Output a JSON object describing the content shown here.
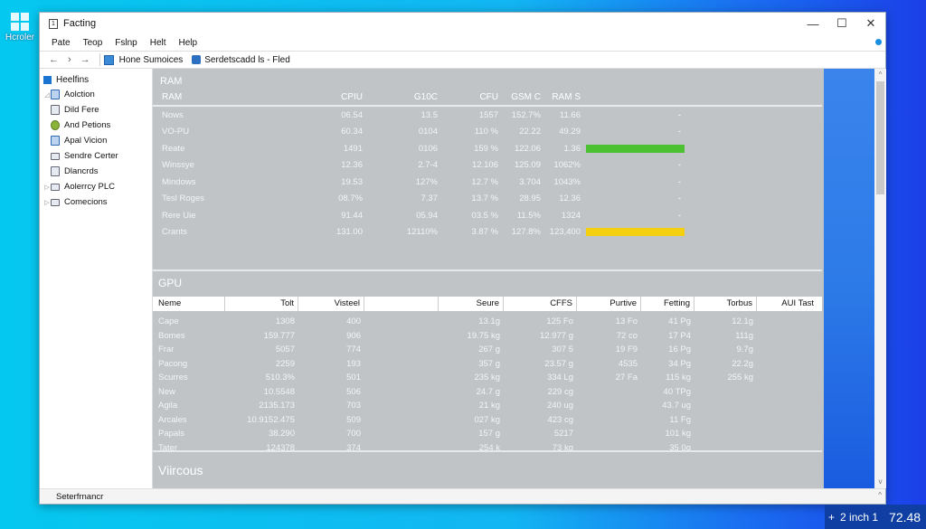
{
  "desktop": {
    "icon_label": "Hcroler"
  },
  "window": {
    "title": "Facting",
    "controls": {
      "minimize": "—",
      "maximize": "☐",
      "close": "✕"
    }
  },
  "menu": [
    "Pate",
    "Teop",
    "Fslnp",
    "Helt",
    "Help"
  ],
  "address": {
    "back": "←",
    "forward": "›",
    "next": "→",
    "crumbs": [
      "Hone Sumoices",
      "Serdetscadd ls - Fled"
    ]
  },
  "nav": {
    "root": "Heelfins",
    "items": [
      {
        "label": "Aolction",
        "expander": "◿",
        "icon": "folder"
      },
      {
        "label": "Dild Fere",
        "expander": "",
        "icon": "document"
      },
      {
        "label": "And Petions",
        "expander": "",
        "icon": "gear"
      },
      {
        "label": "Apal Vicion",
        "expander": "",
        "icon": "document-blue"
      },
      {
        "label": "Sendre Certer",
        "expander": "",
        "icon": "monitor"
      },
      {
        "label": "Dlancrds",
        "expander": "",
        "icon": "document"
      },
      {
        "label": "Aolerrcy PLC",
        "expander": "▷",
        "icon": "drive"
      },
      {
        "label": "Comecions",
        "expander": "▷",
        "icon": "network"
      }
    ]
  },
  "ram": {
    "title": "RAM",
    "headers": [
      "RAM",
      "CPIU",
      "G10C",
      "CFU",
      "GSM C",
      "RAM S",
      ""
    ],
    "rows": [
      {
        "name": "Nows",
        "cpu": "06.54",
        "g": "13.5",
        "cpu2": "1557",
        "gsm": "152.7%",
        "rams": "11.66",
        "bar": "-",
        "bar_color": ""
      },
      {
        "name": "VO-PU",
        "cpu": "60.34",
        "g": "0104",
        "cpu2": "110 %",
        "gsm": "22.22",
        "rams": "49.29",
        "bar": "-",
        "bar_color": ""
      },
      {
        "name": "Reate",
        "cpu": "1491",
        "g": "0106",
        "cpu2": "159 %",
        "gsm": "122.06",
        "rams": "1.36",
        "bar": "",
        "bar_color": "#4cc232"
      },
      {
        "name": "Winssye",
        "cpu": "12.36",
        "g": "2.7-4",
        "cpu2": "12.106",
        "gsm": "125.09",
        "rams": "1062%",
        "bar": "-",
        "bar_color": ""
      },
      {
        "name": "Mindows",
        "cpu": "19.53",
        "g": "127%",
        "cpu2": "12.7 %",
        "gsm": "3.704",
        "rams": "1043%",
        "bar": "-",
        "bar_color": ""
      },
      {
        "name": "Tesl Roges",
        "cpu": "08.7%",
        "g": "7.37",
        "cpu2": "13.7 %",
        "gsm": "28.95",
        "rams": "12.36",
        "bar": "-",
        "bar_color": ""
      },
      {
        "name": "Rere Uie",
        "cpu": "91.44",
        "g": "05.94",
        "cpu2": "03.5 %",
        "gsm": "11.5%",
        "rams": "1324",
        "bar": "-",
        "bar_color": ""
      },
      {
        "name": "Crants",
        "cpu": "131.00",
        "g": "12110%",
        "cpu2": "3.87 %",
        "gsm": "127.8%",
        "rams": "123,400",
        "bar": "",
        "bar_color": "#f5d010"
      }
    ]
  },
  "gpu": {
    "title": "GPU",
    "headers": [
      "Neme",
      "Tolt",
      "Visteel",
      "",
      "Seure",
      "CFFS",
      "Purtive",
      "Fetting",
      "Torbus",
      "AUI Tast"
    ],
    "rows": [
      [
        "Cape",
        "1308",
        "400",
        "",
        "13.1g",
        "125 Fo",
        "13 Fo",
        "41 Pg",
        "12.1g",
        ""
      ],
      [
        "Bomes",
        "159.777",
        "906",
        "",
        "19.75 kg",
        "12.977 g",
        "72 co",
        "17 P4",
        "111g",
        ""
      ],
      [
        "Frar",
        "5057",
        "774",
        "",
        "267 g",
        "307 5",
        "19 F9",
        "16 Pg",
        "9.7g",
        ""
      ],
      [
        "Pacong",
        "2259",
        "193",
        "",
        "357 g",
        "23.57 g",
        "4535",
        "34 Pg",
        "22.2g",
        ""
      ],
      [
        "Scurres",
        "510.3%",
        "501",
        "",
        "235 kg",
        "334 Lg",
        "27 Fa",
        "115 kg",
        "255 kg",
        ""
      ],
      [
        "New",
        "10.5548",
        "506",
        "",
        "24.7 g",
        "229 cg",
        "",
        "40 TPg",
        "",
        ""
      ],
      [
        "Agila",
        "2135.173",
        "703",
        "",
        "21 kg",
        "240 ug",
        "",
        "43.7 ug",
        "",
        ""
      ],
      [
        "Arcales",
        "10.9152.475",
        "509",
        "",
        "027 kg",
        "423 cg",
        "",
        "11 Fg",
        "",
        ""
      ],
      [
        "Papals",
        "38.290",
        "700",
        "",
        "157 g",
        "5217",
        "",
        "101 kg",
        "",
        ""
      ],
      [
        "Tater",
        "124378",
        "374",
        "",
        "254 k",
        "73 kg",
        "",
        "35 0g",
        "",
        ""
      ]
    ]
  },
  "vircous": {
    "title": "Viircous"
  },
  "scrollbar": {
    "up": "^",
    "down": "v"
  },
  "status": {
    "text": "Seterfrnancr",
    "up": "^"
  },
  "tray": {
    "icon": "+",
    "label": "2 inch 1",
    "time": "72.48"
  }
}
